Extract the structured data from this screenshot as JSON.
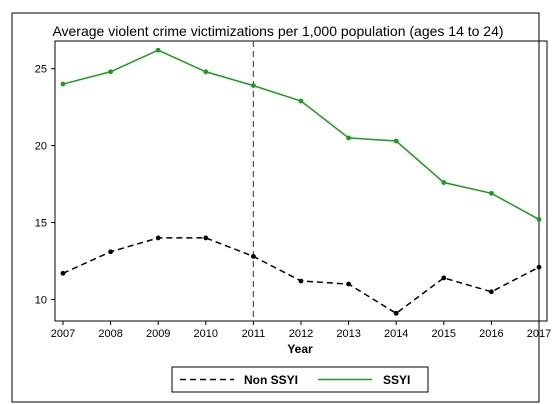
{
  "chart_data": {
    "type": "line",
    "title": "Average violent crime victimizations per 1,000 population (ages 14 to 24)",
    "xlabel": "Year",
    "ylabel": "",
    "x": [
      2007,
      2008,
      2009,
      2010,
      2011,
      2012,
      2013,
      2014,
      2015,
      2016,
      2017
    ],
    "xlim": [
      2007,
      2017
    ],
    "ylim": [
      8.6,
      26.8
    ],
    "yticks": [
      10,
      15,
      20,
      25
    ],
    "grid": false,
    "legend_position": "bottom",
    "reference_line": {
      "x": 2011,
      "style": "dashed"
    },
    "series": [
      {
        "name": "Non SSYI",
        "style": "dashed",
        "color": "#000000",
        "values": [
          11.7,
          13.1,
          14.0,
          14.0,
          12.8,
          11.2,
          11.0,
          9.1,
          11.4,
          10.5,
          12.1
        ]
      },
      {
        "name": "SSYI",
        "style": "solid",
        "color": "#1a9c1a",
        "values": [
          24.0,
          24.8,
          26.2,
          24.8,
          23.9,
          22.9,
          20.5,
          20.3,
          17.6,
          16.9,
          15.2
        ]
      }
    ]
  }
}
